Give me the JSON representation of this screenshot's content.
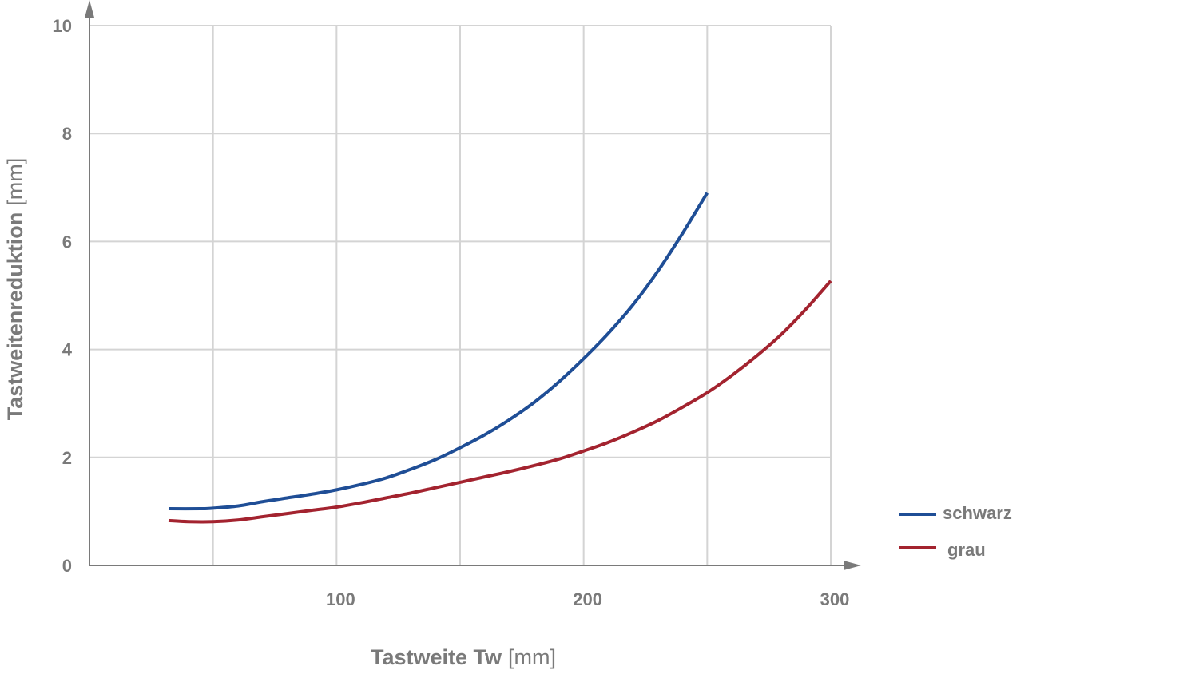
{
  "chart_data": {
    "type": "line",
    "xlabel": {
      "main": "Tastweite Tw",
      "unit": "[mm]"
    },
    "ylabel": {
      "main": "Tastweitenreduktion",
      "unit": "[mm]"
    },
    "xlim": [
      0,
      300
    ],
    "ylim": [
      0,
      10
    ],
    "x_gridlines": [
      50,
      100,
      150,
      200,
      250,
      300
    ],
    "x_tick_labels": [
      {
        "value": 100,
        "label": "100"
      },
      {
        "value": 200,
        "label": "200"
      },
      {
        "value": 300,
        "label": "300"
      }
    ],
    "y_tick_labels": [
      {
        "value": 0,
        "label": "0"
      },
      {
        "value": 2,
        "label": "2"
      },
      {
        "value": 4,
        "label": "4"
      },
      {
        "value": 6,
        "label": "6"
      },
      {
        "value": 8,
        "label": "8"
      },
      {
        "value": 10,
        "label": "10"
      }
    ],
    "grid": true,
    "legend_position": "bottom-right",
    "series": [
      {
        "name": "schwarz",
        "color": "#1f4e96",
        "x": [
          32,
          45,
          50,
          60,
          70,
          80,
          90,
          100,
          110,
          120,
          130,
          140,
          150,
          160,
          170,
          180,
          190,
          200,
          210,
          220,
          230,
          240,
          250
        ],
        "y": [
          1.05,
          1.05,
          1.06,
          1.1,
          1.18,
          1.25,
          1.32,
          1.4,
          1.5,
          1.62,
          1.78,
          1.96,
          2.18,
          2.42,
          2.7,
          3.02,
          3.4,
          3.83,
          4.3,
          4.83,
          5.45,
          6.15,
          6.9
        ]
      },
      {
        "name": "grau",
        "color": "#a3232f",
        "x": [
          32,
          40,
          50,
          60,
          70,
          80,
          90,
          100,
          110,
          120,
          130,
          140,
          150,
          160,
          170,
          180,
          190,
          200,
          210,
          220,
          230,
          240,
          250,
          260,
          270,
          280,
          290,
          300
        ],
        "y": [
          0.83,
          0.81,
          0.81,
          0.84,
          0.9,
          0.96,
          1.02,
          1.08,
          1.16,
          1.25,
          1.34,
          1.44,
          1.54,
          1.64,
          1.74,
          1.85,
          1.97,
          2.12,
          2.28,
          2.47,
          2.68,
          2.93,
          3.2,
          3.52,
          3.88,
          4.28,
          4.75,
          5.27
        ]
      }
    ]
  }
}
